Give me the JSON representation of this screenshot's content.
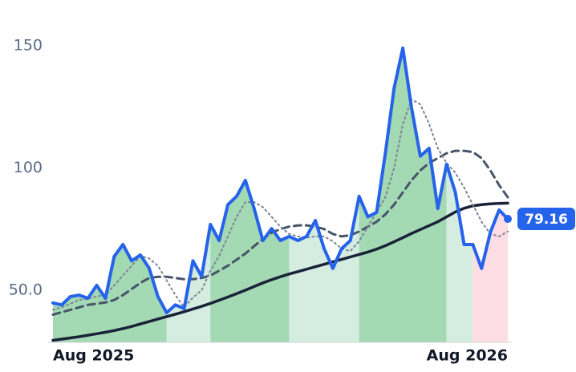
{
  "chart_data": {
    "type": "line",
    "x": [
      0,
      1,
      2,
      3,
      4,
      5,
      6,
      7,
      8,
      9,
      10,
      11,
      12,
      13,
      14,
      15,
      16,
      17,
      18,
      19,
      20,
      21,
      22,
      23,
      24,
      25,
      26,
      27,
      28,
      29,
      30,
      31,
      32,
      33,
      34,
      35,
      36,
      37,
      38,
      39,
      40,
      41,
      42,
      43,
      44,
      45,
      46,
      47,
      48,
      49,
      50,
      51,
      52
    ],
    "xlim": [
      0,
      52
    ],
    "xticks": [
      {
        "value": 0,
        "label": "Aug 2025"
      },
      {
        "value": 52,
        "label": "Aug 2026"
      }
    ],
    "ylim": [
      28.69,
      162.1
    ],
    "yticks": [
      {
        "value": 50,
        "label": "50.0"
      },
      100,
      150
    ],
    "series": [
      {
        "color": "#2563eb",
        "dash": "solid",
        "width": 4,
        "values": [
          44.8,
          44,
          47.4,
          48,
          46.7,
          52,
          46.7,
          63.8,
          68.7,
          62,
          64.4,
          59,
          47.4,
          40.8,
          44,
          42.5,
          62,
          55.6,
          76.9,
          70.3,
          85,
          88.4,
          94.9,
          83.4,
          70.3,
          75.2,
          70.3,
          72,
          70.3,
          72,
          78.5,
          67,
          58.9,
          67,
          70.3,
          88.4,
          80,
          81.8,
          106,
          132.6,
          149,
          124.4,
          104.8,
          108,
          83.4,
          101.5,
          90,
          68.7,
          68.7,
          58.9,
          73.6,
          82.8,
          79.16
        ]
      },
      {
        "color": "#7b8394",
        "dash": "dotted",
        "width": 2,
        "values": [
          42,
          43,
          44.5,
          46,
          46.5,
          47.5,
          48,
          52,
          56,
          60,
          64,
          63,
          60,
          54,
          48,
          43,
          47,
          50,
          58,
          64,
          72,
          80,
          86,
          86,
          84,
          80,
          76,
          73,
          72,
          71.5,
          72,
          72,
          70,
          67,
          66,
          70,
          76,
          82,
          88,
          100,
          118,
          128,
          126,
          118,
          108,
          102,
          98,
          92,
          85,
          78,
          73,
          72,
          74
        ]
      },
      {
        "color": "#475569",
        "dash": "dashed",
        "width": 3,
        "values": [
          40,
          41,
          42,
          43,
          44,
          44.5,
          45,
          46,
          48,
          50.5,
          53,
          55,
          55.5,
          55.5,
          55,
          54.5,
          54.5,
          55,
          56,
          58,
          60,
          62.5,
          65,
          68,
          71,
          73.5,
          75,
          76,
          76.5,
          76.5,
          76,
          75,
          73,
          72,
          72.5,
          74,
          76,
          78,
          81,
          85,
          90,
          95,
          99,
          102,
          104,
          106,
          107,
          107,
          106.5,
          104,
          99,
          93,
          88
        ]
      },
      {
        "color": "#1a2238",
        "dash": "solid",
        "width": 3.5,
        "values": [
          29.5,
          30,
          30.5,
          31,
          31.6,
          32.2,
          32.8,
          33.5,
          34.3,
          35.2,
          36.2,
          37.2,
          38.2,
          39.2,
          40.2,
          41.2,
          42.3,
          43.4,
          44.6,
          45.9,
          47.2,
          48.6,
          50,
          51.5,
          53,
          54.3,
          55.5,
          56.6,
          57.6,
          58.6,
          59.6,
          60.6,
          61.6,
          62.6,
          63.6,
          64.6,
          65.6,
          66.8,
          68.2,
          69.8,
          71.5,
          73.2,
          74.8,
          76.4,
          78,
          80,
          82,
          83.5,
          84.5,
          85,
          85.3,
          85.5,
          85.6
        ]
      }
    ],
    "regions": [
      {
        "start": 0,
        "end": 13,
        "color": "#a3d9b3"
      },
      {
        "start": 13,
        "end": 18,
        "color": "#d4ede0"
      },
      {
        "start": 18,
        "end": 27,
        "color": "#a3d9b3"
      },
      {
        "start": 27,
        "end": 35,
        "color": "#d4ede0"
      },
      {
        "start": 35,
        "end": 45,
        "color": "#a3d9b3"
      },
      {
        "start": 45,
        "end": 48,
        "color": "#d4ede0"
      },
      {
        "start": 48,
        "end": 52,
        "color": "#fddde4"
      }
    ]
  }
}
